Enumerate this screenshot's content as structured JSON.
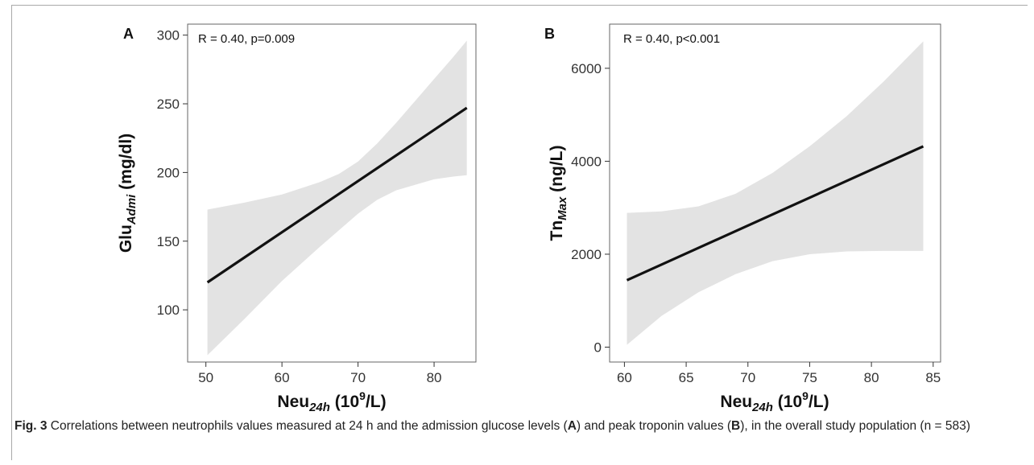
{
  "chart_data": [
    {
      "type": "line",
      "panel_label": "A",
      "annotation": "R = 0.40, p=0.009",
      "xlabel": {
        "main": "Neu",
        "sub": "24h",
        "unit_pre": " (10",
        "sup": "9",
        "unit_post": "/L)"
      },
      "ylabel": {
        "main": "Glu",
        "sub": "Admi",
        "unit": " (mg/dl)"
      },
      "xlim": [
        47.6,
        85.5
      ],
      "ylim": [
        62,
        308
      ],
      "xticks": [
        50,
        60,
        70,
        80
      ],
      "yticks": [
        100,
        150,
        200,
        250,
        300
      ],
      "series": [
        {
          "x": [
            50.2,
            84.3
          ],
          "y": [
            120,
            247
          ]
        }
      ],
      "confidence_band": {
        "x": [
          50.2,
          55,
          60,
          65,
          67.5,
          70,
          72.5,
          75,
          77.5,
          80,
          82.5,
          84.3
        ],
        "upper": [
          173,
          178,
          184,
          193,
          199,
          208,
          221,
          236,
          252,
          268,
          284,
          296
        ],
        "lower": [
          67,
          93,
          121,
          146,
          158,
          170,
          180,
          187,
          191,
          195,
          197,
          198
        ]
      },
      "colors": {
        "line": "#111111",
        "band": "#e3e3e3"
      }
    },
    {
      "type": "line",
      "panel_label": "B",
      "annotation": "R = 0.40, p<0.001",
      "xlabel": {
        "main": "Neu",
        "sub": "24h",
        "unit_pre": " (10",
        "sup": "9",
        "unit_post": "/L)"
      },
      "ylabel": {
        "main": "Tn",
        "sub": "Max",
        "unit": " (ng/L)"
      },
      "xlim": [
        58.8,
        85.6
      ],
      "ylim": [
        -320,
        6950
      ],
      "xticks": [
        60,
        65,
        70,
        75,
        80,
        85
      ],
      "yticks": [
        0,
        2000,
        4000,
        6000
      ],
      "series": [
        {
          "x": [
            60.2,
            84.2
          ],
          "y": [
            1440,
            4320
          ]
        }
      ],
      "confidence_band": {
        "x": [
          60.2,
          63,
          66,
          69,
          72,
          75,
          78,
          81,
          84.2
        ],
        "upper": [
          2890,
          2920,
          3030,
          3300,
          3750,
          4320,
          4970,
          5720,
          6580
        ],
        "lower": [
          50,
          670,
          1180,
          1570,
          1850,
          2000,
          2060,
          2070,
          2070
        ]
      },
      "colors": {
        "line": "#111111",
        "band": "#e3e3e3"
      }
    }
  ],
  "caption": {
    "fig_label": "Fig. 3",
    "parts": [
      "  Correlations between neutrophils values measured at 24 h and the admission glucose levels (",
      "A",
      ") and peak troponin values (",
      "B",
      "), in the overall study population (n = 583)"
    ]
  }
}
